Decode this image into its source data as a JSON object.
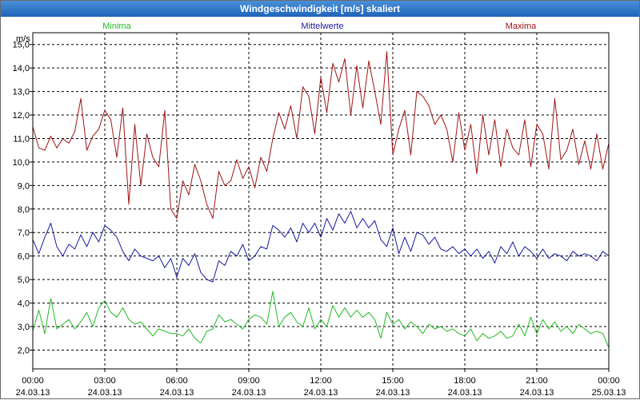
{
  "window": {
    "title": "Windgeschwindigkeit [m/s] skaliert"
  },
  "colors": {
    "min": "#22bb22",
    "mean": "#1a1aa0",
    "max": "#a01515",
    "grid": "#000000"
  },
  "chart_data": {
    "type": "line",
    "title": "Windgeschwindigkeit [m/s] skaliert",
    "ylabel": "m/s",
    "xlabel": "",
    "ylim": [
      1.2,
      15.5
    ],
    "xlim": [
      0,
      24
    ],
    "grid": true,
    "legend": "top",
    "yticks": [
      "2,0",
      "3,0",
      "4,0",
      "5,0",
      "6,0",
      "7,0",
      "8,0",
      "9,0",
      "10,0",
      "11,0",
      "12,0",
      "13,0",
      "14,0",
      "15,0"
    ],
    "ytick_values": [
      2,
      3,
      4,
      5,
      6,
      7,
      8,
      9,
      10,
      11,
      12,
      13,
      14,
      15
    ],
    "xticks": [
      {
        "time": "00:00",
        "date": "24.03.13"
      },
      {
        "time": "03:00",
        "date": "24.03.13"
      },
      {
        "time": "06:00",
        "date": "24.03.13"
      },
      {
        "time": "09:00",
        "date": "24.03.13"
      },
      {
        "time": "12:00",
        "date": "24.03.13"
      },
      {
        "time": "15:00",
        "date": "24.03.13"
      },
      {
        "time": "18:00",
        "date": "24.03.13"
      },
      {
        "time": "21:00",
        "date": "24.03.13"
      },
      {
        "time": "00:00",
        "date": "25.03.13"
      }
    ],
    "series": [
      {
        "name": "Minima",
        "color": "#22bb22",
        "x": [
          0,
          0.25,
          0.5,
          0.75,
          1,
          1.25,
          1.5,
          1.75,
          2,
          2.25,
          2.5,
          2.75,
          3,
          3.25,
          3.5,
          3.75,
          4,
          4.25,
          4.5,
          4.75,
          5,
          5.25,
          5.5,
          5.75,
          6,
          6.25,
          6.5,
          6.75,
          7,
          7.25,
          7.5,
          7.75,
          8,
          8.25,
          8.5,
          8.75,
          9,
          9.25,
          9.5,
          9.75,
          10,
          10.25,
          10.5,
          10.75,
          11,
          11.25,
          11.5,
          11.75,
          12,
          12.25,
          12.5,
          12.75,
          13,
          13.25,
          13.5,
          13.75,
          14,
          14.25,
          14.5,
          14.75,
          15,
          15.25,
          15.5,
          15.75,
          16,
          16.25,
          16.5,
          16.75,
          17,
          17.25,
          17.5,
          17.75,
          18,
          18.25,
          18.5,
          18.75,
          19,
          19.25,
          19.5,
          19.75,
          20,
          20.25,
          20.5,
          20.75,
          21,
          21.25,
          21.5,
          21.75,
          22,
          22.25,
          22.5,
          22.75,
          23,
          23.25,
          23.5,
          23.75,
          24
        ],
        "y": [
          2.8,
          3.7,
          2.7,
          4.2,
          2.9,
          3.1,
          3.3,
          2.9,
          3.2,
          3.6,
          3.0,
          3.8,
          4.1,
          3.6,
          3.4,
          3.8,
          3.3,
          3.1,
          3.2,
          2.9,
          2.6,
          2.9,
          2.8,
          2.7,
          2.7,
          2.6,
          2.9,
          2.5,
          2.3,
          2.8,
          2.9,
          3.5,
          3.2,
          3.3,
          3.1,
          2.9,
          3.3,
          3.5,
          3.4,
          3.1,
          4.5,
          3.0,
          3.4,
          3.6,
          3.2,
          3.0,
          3.8,
          2.9,
          3.3,
          3.0,
          3.9,
          3.4,
          3.8,
          3.4,
          3.7,
          3.4,
          3.6,
          3.3,
          2.5,
          3.6,
          3.1,
          3.3,
          2.9,
          3.2,
          3.0,
          2.7,
          3.1,
          2.9,
          3.0,
          2.8,
          2.9,
          2.7,
          2.6,
          2.9,
          2.4,
          2.7,
          2.5,
          2.6,
          2.8,
          2.5,
          2.6,
          3.1,
          2.6,
          3.4,
          2.7,
          3.3,
          2.9,
          3.2,
          2.8,
          3.0,
          2.7,
          3.1,
          2.9,
          2.7,
          2.8,
          2.7,
          2.1
        ]
      },
      {
        "name": "Mittelwerte",
        "color": "#1a1aa0",
        "x": [
          0,
          0.25,
          0.5,
          0.75,
          1,
          1.25,
          1.5,
          1.75,
          2,
          2.25,
          2.5,
          2.75,
          3,
          3.25,
          3.5,
          3.75,
          4,
          4.25,
          4.5,
          4.75,
          5,
          5.25,
          5.5,
          5.75,
          6,
          6.25,
          6.5,
          6.75,
          7,
          7.25,
          7.5,
          7.75,
          8,
          8.25,
          8.5,
          8.75,
          9,
          9.25,
          9.5,
          9.75,
          10,
          10.25,
          10.5,
          10.75,
          11,
          11.25,
          11.5,
          11.75,
          12,
          12.25,
          12.5,
          12.75,
          13,
          13.25,
          13.5,
          13.75,
          14,
          14.25,
          14.5,
          14.75,
          15,
          15.25,
          15.5,
          15.75,
          16,
          16.25,
          16.5,
          16.75,
          17,
          17.25,
          17.5,
          17.75,
          18,
          18.25,
          18.5,
          18.75,
          19,
          19.25,
          19.5,
          19.75,
          20,
          20.25,
          20.5,
          20.75,
          21,
          21.25,
          21.5,
          21.75,
          22,
          22.25,
          22.5,
          22.75,
          23,
          23.25,
          23.5,
          23.75,
          24
        ],
        "y": [
          6.7,
          6.1,
          6.8,
          7.4,
          6.4,
          6.0,
          6.5,
          6.3,
          6.9,
          6.4,
          7.0,
          6.6,
          7.3,
          7.1,
          6.8,
          6.2,
          5.8,
          6.3,
          6.0,
          5.9,
          5.8,
          6.0,
          5.5,
          5.9,
          5.1,
          5.9,
          5.6,
          6.1,
          5.3,
          5.0,
          4.9,
          5.8,
          5.6,
          6.2,
          6.0,
          6.5,
          5.8,
          6.0,
          6.4,
          6.3,
          7.3,
          7.1,
          6.8,
          7.2,
          6.6,
          7.4,
          7.0,
          7.4,
          6.8,
          7.6,
          7.1,
          7.8,
          7.4,
          7.9,
          7.2,
          7.6,
          7.2,
          7.5,
          6.7,
          6.4,
          7.2,
          6.1,
          6.8,
          6.2,
          7.0,
          6.9,
          6.5,
          6.8,
          6.3,
          6.2,
          6.4,
          6.1,
          6.3,
          6.0,
          6.3,
          5.9,
          6.2,
          5.7,
          6.4,
          6.1,
          6.6,
          6.0,
          6.4,
          6.2,
          5.9,
          6.3,
          5.9,
          6.1,
          6.0,
          5.8,
          6.2,
          6.0,
          6.1,
          6.0,
          5.8,
          6.2,
          6.0
        ]
      },
      {
        "name": "Maxima",
        "color": "#a01515",
        "x": [
          0,
          0.25,
          0.5,
          0.75,
          1,
          1.25,
          1.5,
          1.75,
          2,
          2.25,
          2.5,
          2.75,
          3,
          3.25,
          3.5,
          3.75,
          4,
          4.25,
          4.5,
          4.75,
          5,
          5.25,
          5.5,
          5.75,
          6,
          6.25,
          6.5,
          6.75,
          7,
          7.25,
          7.5,
          7.75,
          8,
          8.25,
          8.5,
          8.75,
          9,
          9.25,
          9.5,
          9.75,
          10,
          10.25,
          10.5,
          10.75,
          11,
          11.25,
          11.5,
          11.75,
          12,
          12.25,
          12.5,
          12.75,
          13,
          13.25,
          13.5,
          13.75,
          14,
          14.25,
          14.5,
          14.75,
          15,
          15.25,
          15.5,
          15.75,
          16,
          16.25,
          16.5,
          16.75,
          17,
          17.25,
          17.5,
          17.75,
          18,
          18.25,
          18.5,
          18.75,
          19,
          19.25,
          19.5,
          19.75,
          20,
          20.25,
          20.5,
          20.75,
          21,
          21.25,
          21.5,
          21.75,
          22,
          22.25,
          22.5,
          22.75,
          23,
          23.25,
          23.5,
          23.75,
          24
        ],
        "y": [
          11.5,
          10.6,
          10.5,
          11.1,
          10.6,
          11.0,
          10.8,
          11.3,
          12.7,
          10.5,
          11.1,
          11.4,
          12.2,
          11.8,
          10.2,
          12.3,
          8.2,
          11.6,
          9.0,
          11.2,
          10.2,
          9.8,
          12.2,
          8.0,
          7.6,
          9.2,
          8.6,
          9.9,
          9.2,
          8.2,
          7.6,
          9.6,
          9.0,
          9.2,
          10.1,
          9.3,
          9.8,
          8.9,
          10.2,
          9.6,
          11.0,
          12.1,
          11.4,
          12.4,
          11.0,
          13.2,
          12.8,
          11.2,
          13.6,
          12.1,
          14.2,
          13.4,
          14.4,
          12.0,
          14.1,
          12.3,
          14.3,
          13.0,
          11.6,
          14.7,
          10.3,
          11.4,
          12.2,
          10.3,
          13.0,
          12.8,
          12.4,
          11.6,
          12.0,
          11.4,
          10.0,
          12.1,
          10.5,
          11.6,
          9.5,
          12.0,
          10.3,
          11.8,
          9.8,
          11.4,
          10.6,
          10.3,
          11.8,
          9.8,
          11.6,
          11.2,
          9.7,
          12.7,
          10.1,
          10.5,
          11.4,
          9.9,
          10.9,
          9.7,
          11.2,
          9.7,
          10.8
        ]
      }
    ]
  }
}
